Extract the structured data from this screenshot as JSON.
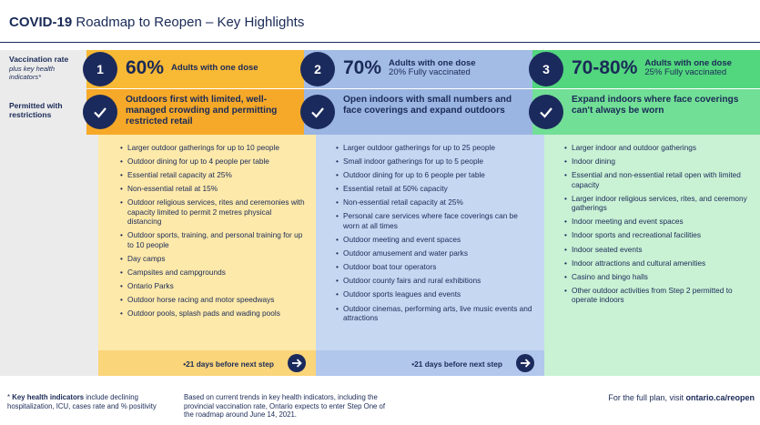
{
  "title": {
    "bold": "COVID-19",
    "rest": "Roadmap to Reopen – Key Highlights"
  },
  "row_labels": {
    "vaccination": {
      "label": "Vaccination rate",
      "note": "plus key health indicators*"
    },
    "permitted": "Permitted with restrictions"
  },
  "steps": [
    {
      "number": "1",
      "rate": "60%",
      "rate_text": "Adults with one dose",
      "headline": "Outdoors first with limited, well-managed crowding and permitting restricted retail",
      "items": [
        "Larger outdoor gatherings for up to 10 people",
        "Outdoor dining for up to 4 people per table",
        "Essential retail capacity at 25%",
        "Non-essential retail at 15%",
        "Outdoor religious services, rites and ceremonies with capacity limited to permit 2 metres physical distancing",
        "Outdoor sports, training, and personal training for up to 10 people",
        "Day camps",
        "Campsites and campgrounds",
        "Ontario Parks",
        "Outdoor horse racing and motor speedways",
        "Outdoor pools, splash pads and wading pools"
      ],
      "next": "•21 days before next step"
    },
    {
      "number": "2",
      "rate": "70%",
      "rate_text": "Adults with one dose",
      "rate_note": "20% Fully vaccinated",
      "headline": "Open indoors with small numbers and face coverings and expand outdoors",
      "items": [
        "Larger outdoor gatherings for up to 25 people",
        "Small indoor gatherings for up to 5 people",
        "Outdoor dining for up to 6 people per table",
        "Essential retail at 50% capacity",
        "Non-essential retail capacity at 25%",
        "Personal care services where face coverings can be worn at all times",
        "Outdoor meeting and event spaces",
        "Outdoor amusement and water parks",
        "Outdoor boat tour operators",
        "Outdoor county fairs and rural exhibitions",
        "Outdoor sports leagues and events",
        "Outdoor cinemas, performing arts, live music events and attractions"
      ],
      "next": "•21 days before next step"
    },
    {
      "number": "3",
      "rate": "70-80%",
      "rate_text": "Adults with one dose",
      "rate_note": "25% Fully vaccinated",
      "headline": "Expand indoors where face coverings can't always be worn",
      "items": [
        "Larger indoor and outdoor gatherings",
        "Indoor dining",
        "Essential and non-essential retail open with limited capacity",
        "Larger indoor religious services, rites, and ceremony gatherings",
        "Indoor meeting and event spaces",
        "Indoor sports and recreational facilities",
        "Indoor seated events",
        "Indoor attractions and cultural amenities",
        "Casino and bingo halls",
        "Other outdoor activities from Step 2 permitted to operate indoors"
      ]
    }
  ],
  "footer": {
    "indicators": {
      "mark": "*",
      "term": "Key health indicators",
      "text": "include declining hospitalization, ICU, cases rate and % positivity"
    },
    "basis": "Based on current trends in key health indicators, including the provincial vaccination rate, Ontario expects to enter Step One of the roadmap around June 14, 2021.",
    "plan": {
      "text": "For the full plan, visit",
      "link": "ontario.ca/reopen"
    }
  }
}
